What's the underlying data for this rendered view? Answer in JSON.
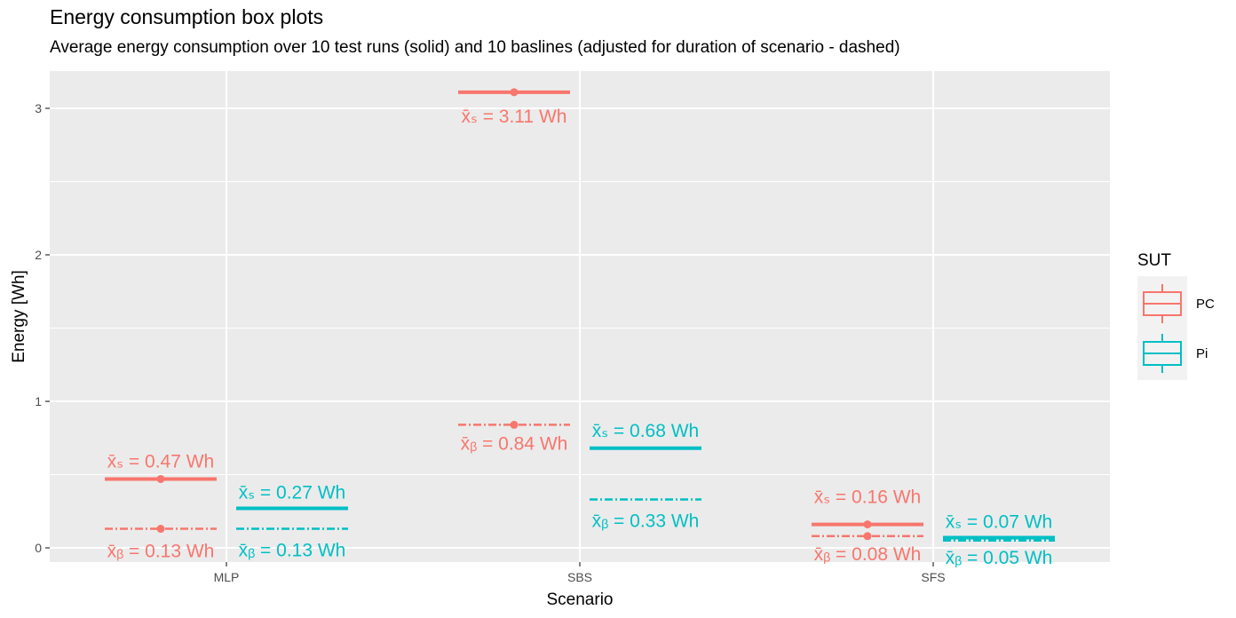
{
  "title": "Energy consumption box plots",
  "subtitle": "Average energy consumption over 10 test runs (solid) and 10 baslines (adjusted for duration of scenario - dashed)",
  "colors": {
    "PC": "#F8766D",
    "Pi": "#00BFC4",
    "panel": "#EBEBEB",
    "grid": "#FFFFFF"
  },
  "legend": {
    "title": "SUT",
    "items": [
      {
        "label": "PC",
        "color": "#F8766D"
      },
      {
        "label": "Pi",
        "color": "#00BFC4"
      }
    ]
  },
  "chart_data": {
    "type": "box",
    "xlabel": "Scenario",
    "ylabel": "Energy [Wh]",
    "categories": [
      "MLP",
      "SBS",
      "SFS"
    ],
    "ylim": [
      -0.1,
      3.25
    ],
    "yticks": [
      0,
      1,
      2,
      3
    ],
    "grid": true,
    "legend_position": "right",
    "series": [
      {
        "name": "PC",
        "kind": "test runs (solid)",
        "values": [
          0.47,
          3.11,
          0.16
        ],
        "labels": [
          "x̄ₛ = 0.47 Wh",
          "x̄ₛ = 3.11 Wh",
          "x̄ₛ = 0.16 Wh"
        ]
      },
      {
        "name": "PC",
        "kind": "baselines (dashed)",
        "values": [
          0.13,
          0.84,
          0.08
        ],
        "labels": [
          "x̄ᵦ = 0.13 Wh",
          "x̄ᵦ = 0.84 Wh",
          "x̄ᵦ = 0.08 Wh"
        ]
      },
      {
        "name": "Pi",
        "kind": "test runs (solid)",
        "values": [
          0.27,
          0.68,
          0.07
        ],
        "labels": [
          "x̄ₛ = 0.27 Wh",
          "x̄ₛ = 0.68 Wh",
          "x̄ₛ = 0.07 Wh"
        ]
      },
      {
        "name": "Pi",
        "kind": "baselines (dashed)",
        "values": [
          0.13,
          0.33,
          0.05
        ],
        "labels": [
          "x̄ᵦ = 0.13 Wh",
          "x̄ᵦ = 0.33 Wh",
          "x̄ᵦ = 0.05 Wh"
        ]
      }
    ]
  }
}
